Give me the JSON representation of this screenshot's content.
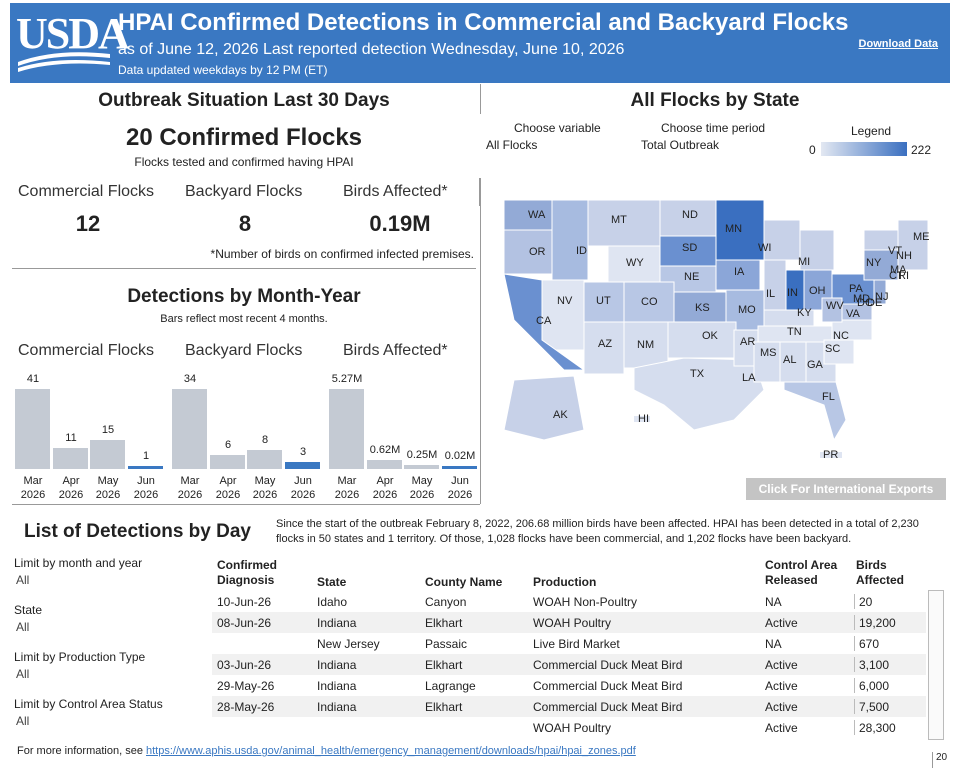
{
  "header": {
    "logo": "USDA",
    "title": "HPAI Confirmed Detections in Commercial and Backyard Flocks",
    "subtitle": "as of June 12, 2026 Last reported detection Wednesday, June 10, 2026",
    "update_note": "Data updated weekdays by 12 PM (ET)",
    "download": "Download Data",
    "color": "#3a78c2"
  },
  "outbreak": {
    "title": "Outbreak Situation Last 30 Days",
    "confirmed": "20 Confirmed Flocks",
    "confirmed_sub": "Flocks tested and confirmed having HPAI",
    "commercial_label": "Commercial Flocks",
    "commercial_value": "12",
    "backyard_label": "Backyard Flocks",
    "backyard_value": "8",
    "birds_label": "Birds Affected*",
    "birds_value": "0.19M",
    "footnote": "*Number of birds on confirmed infected premises."
  },
  "monthly": {
    "title": "Detections by Month-Year",
    "subtitle": "Bars reflect most recent 4 months.",
    "commercial_label": "Commercial Flocks",
    "backyard_label": "Backyard Flocks",
    "birds_label": "Birds Affected*"
  },
  "chart_data": [
    {
      "type": "bar",
      "title": "Commercial Flocks",
      "categories": [
        "Mar 2026",
        "Apr 2026",
        "May 2026",
        "Jun 2026"
      ],
      "values": [
        41,
        11,
        15,
        1
      ],
      "labels": [
        "41",
        "11",
        "15",
        "1"
      ]
    },
    {
      "type": "bar",
      "title": "Backyard Flocks",
      "categories": [
        "Mar 2026",
        "Apr 2026",
        "May 2026",
        "Jun 2026"
      ],
      "values": [
        34,
        6,
        8,
        3
      ],
      "labels": [
        "34",
        "6",
        "8",
        "3"
      ]
    },
    {
      "type": "bar",
      "title": "Birds Affected*",
      "categories": [
        "Mar 2026",
        "Apr 2026",
        "May 2026",
        "Jun 2026"
      ],
      "values": [
        5.27,
        0.62,
        0.25,
        0.02
      ],
      "labels": [
        "5.27M",
        "0.62M",
        "0.25M",
        "0.02M"
      ]
    }
  ],
  "map": {
    "title": "All Flocks by State",
    "var_label": "Choose variable",
    "var_value": "All Flocks",
    "time_label": "Choose time period",
    "time_value": "Total Outbreak",
    "legend_title": "Legend",
    "legend_min": "0",
    "legend_max": "222",
    "intl_button": "Click For International Exports",
    "states": [
      "WA",
      "MT",
      "ND",
      "MN",
      "ME",
      "OR",
      "ID",
      "SD",
      "WI",
      "VT",
      "NH",
      "NY",
      "MA",
      "CT",
      "RI",
      "WY",
      "MI",
      "NE",
      "IA",
      "NV",
      "UT",
      "CO",
      "IL",
      "IN",
      "OH",
      "PA",
      "NJ",
      "MD",
      "DE",
      "WV",
      "VA",
      "CA",
      "KS",
      "MO",
      "KY",
      "TN",
      "NC",
      "OK",
      "AR",
      "SC",
      "AZ",
      "NM",
      "MS",
      "AL",
      "GA",
      "TX",
      "LA",
      "FL",
      "AK",
      "HI",
      "PR",
      "DC"
    ]
  },
  "list": {
    "title": "List of Detections by Day",
    "summary": "Since the start of the outbreak February 8, 2022, 206.68 million birds have been affected. HPAI has been detected in a total of 2,230 flocks in 50 states and 1 territory. Of those, 1,028 flocks have been commercial, and 1,202 flocks have been backyard.",
    "filters": [
      {
        "label": "Limit by month and year",
        "value": "All"
      },
      {
        "label": "State",
        "value": "All"
      },
      {
        "label": "Limit by Production Type",
        "value": "All"
      },
      {
        "label": "Limit by Control Area Status",
        "value": "All"
      }
    ],
    "headers": {
      "date1": "Confirmed",
      "date2": "Diagnosis",
      "state": "State",
      "county": "County Name",
      "production": "Production",
      "control1": "Control Area",
      "control2": "Released",
      "birds1": "Birds",
      "birds2": "Affected"
    },
    "rows": [
      {
        "date": "10-Jun-26",
        "state": "Idaho",
        "county": "Canyon",
        "production": "WOAH Non-Poultry",
        "control": "NA",
        "birds": "20"
      },
      {
        "date": "08-Jun-26",
        "state": "Indiana",
        "county": "Elkhart",
        "production": "WOAH Poultry",
        "control": "Active",
        "birds": "19,200"
      },
      {
        "date": "",
        "state": "New Jersey",
        "county": "Passaic",
        "production": "Live Bird Market",
        "control": "NA",
        "birds": "670"
      },
      {
        "date": "03-Jun-26",
        "state": "Indiana",
        "county": "Elkhart",
        "production": "Commercial Duck Meat Bird",
        "control": "Active",
        "birds": "3,100"
      },
      {
        "date": "29-May-26",
        "state": "Indiana",
        "county": "Lagrange",
        "production": "Commercial Duck Meat Bird",
        "control": "Active",
        "birds": "6,000"
      },
      {
        "date": "28-May-26",
        "state": "Indiana",
        "county": "Elkhart",
        "production": "Commercial Duck Meat Bird",
        "control": "Active",
        "birds": "7,500"
      },
      {
        "date": "",
        "state": "",
        "county": "",
        "production": "WOAH Poultry",
        "control": "Active",
        "birds": "28,300"
      }
    ],
    "more_info": "For more information, see",
    "link": "https://www.aphis.usda.gov/animal_health/emergency_management/downloads/hpai/hpai_zones.pdf",
    "page_marker": "20"
  }
}
